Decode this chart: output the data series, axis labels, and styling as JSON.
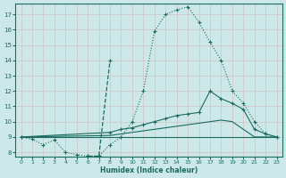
{
  "xlabel": "Humidex (Indice chaleur)",
  "bg_color": "#cce8e8",
  "grid_color": "#d0c8c8",
  "line_color": "#1a6b60",
  "xlim": [
    -0.5,
    23.5
  ],
  "ylim": [
    7.7,
    17.7
  ],
  "xticks": [
    0,
    1,
    2,
    3,
    4,
    5,
    6,
    7,
    8,
    9,
    10,
    11,
    12,
    13,
    14,
    15,
    16,
    17,
    18,
    19,
    20,
    21,
    22,
    23
  ],
  "yticks": [
    8,
    9,
    10,
    11,
    12,
    13,
    14,
    15,
    16,
    17
  ],
  "line1_x": [
    0,
    1,
    2,
    3,
    4,
    5,
    6,
    7,
    8,
    9,
    10,
    11,
    12,
    13,
    14,
    15,
    16,
    17,
    18,
    19,
    20,
    21,
    22,
    23
  ],
  "line1_y": [
    9.0,
    8.85,
    8.5,
    8.8,
    8.0,
    7.85,
    7.75,
    7.75,
    8.5,
    9.0,
    10.0,
    12.0,
    15.9,
    17.0,
    17.3,
    17.5,
    16.5,
    15.2,
    14.0,
    12.0,
    11.2,
    10.0,
    9.2,
    9.0
  ],
  "line2_x": [
    0,
    1,
    2,
    3,
    4,
    5,
    6,
    7,
    8,
    9,
    10,
    11,
    12,
    13,
    14,
    15,
    16,
    17,
    18,
    19,
    20,
    21,
    22,
    23
  ],
  "line2_y": [
    9.0,
    8.85,
    8.5,
    8.8,
    8.0,
    7.85,
    7.75,
    7.75,
    14.0,
    9.0,
    10.0,
    12.0,
    15.9,
    17.0,
    17.3,
    17.5,
    16.5,
    15.2,
    14.0,
    12.0,
    11.2,
    10.0,
    9.2,
    9.0
  ],
  "line3_x": [
    0,
    8,
    9,
    10,
    11,
    12,
    13,
    14,
    15,
    16,
    17,
    18,
    19,
    20,
    21,
    22,
    23
  ],
  "line3_y": [
    9.0,
    9.3,
    9.5,
    9.6,
    9.8,
    10.0,
    10.2,
    10.4,
    10.5,
    10.6,
    12.0,
    11.5,
    11.2,
    10.8,
    9.5,
    9.2,
    9.0
  ],
  "line4_x": [
    0,
    8,
    9,
    10,
    11,
    12,
    13,
    14,
    15,
    16,
    17,
    18,
    19,
    20,
    21,
    22,
    23
  ],
  "line4_y": [
    9.0,
    9.1,
    9.2,
    9.3,
    9.4,
    9.5,
    9.6,
    9.7,
    9.8,
    9.9,
    10.0,
    10.1,
    10.0,
    9.5,
    9.0,
    9.0,
    9.0
  ],
  "line5_x": [
    0,
    23
  ],
  "line5_y": [
    9.0,
    9.0
  ]
}
